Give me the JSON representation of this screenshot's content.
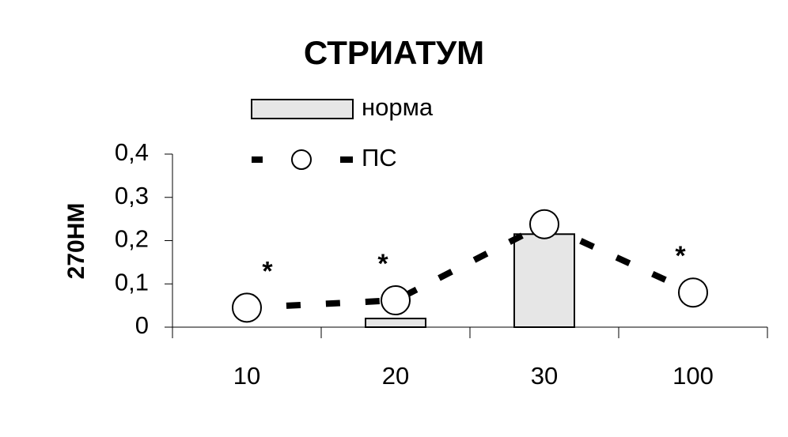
{
  "chart_data": {
    "type": "bar_line",
    "title": "СТРИАТУМ",
    "y_label": "270НМ",
    "categories": [
      "10",
      "20",
      "30",
      "100"
    ],
    "series": [
      {
        "name": "норма",
        "kind": "bar",
        "color": "#e6e6e6",
        "values": [
          0,
          0.02,
          0.215,
          0
        ]
      },
      {
        "name": "ПС",
        "kind": "line",
        "color": "#000000",
        "values": [
          0.045,
          0.062,
          0.238,
          0.08
        ]
      }
    ],
    "annotations": [
      "*",
      "*",
      null,
      "*"
    ],
    "ylim": [
      0,
      0.4
    ],
    "yticks": [
      0,
      {
        "value": 0.1,
        "label": "0,1"
      },
      {
        "value": 0.2,
        "label": "0,2"
      },
      {
        "value": 0.3,
        "label": "0,3"
      },
      {
        "value": 0.4,
        "label": "0,4"
      }
    ]
  }
}
